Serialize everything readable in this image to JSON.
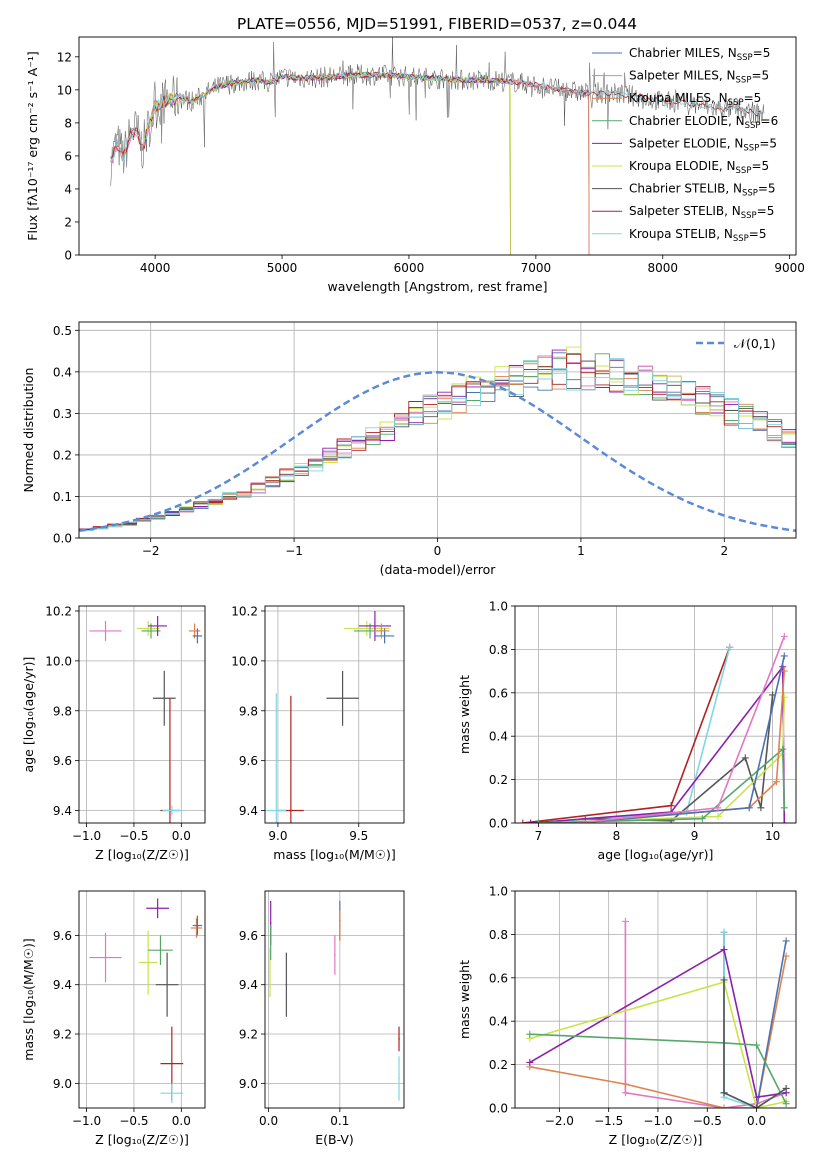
{
  "figure_title": "PLATE=0556, MJD=51991, FIBERID=0537, z=0.044",
  "colors": {
    "Chabrier MILES": "#4c72b0",
    "Salpeter MILES": "#e377c2",
    "Kroupa MILES": "#dd8452",
    "Chabrier ELODIE": "#55a868",
    "Salpeter ELODIE": "#8c1fb0",
    "Kroupa ELODIE": "#cbe34a",
    "Chabrier STELIB": "#555555",
    "Salpeter STELIB": "#b22222",
    "Kroupa STELIB": "#7fd7e0"
  },
  "chart_data": [
    {
      "id": "spectrum",
      "type": "line",
      "title": "PLATE=0556, MJD=51991, FIBERID=0537, z=0.044",
      "xlabel": "wavelength [Angstrom, rest frame]",
      "ylabel": "Flux [fλ10⁻¹⁷ erg cm⁻² s⁻¹ A⁻¹]",
      "xlim": [
        3400,
        9050
      ],
      "ylim": [
        0,
        13.2
      ],
      "xticks": [
        4000,
        5000,
        6000,
        7000,
        8000,
        9000
      ],
      "yticks": [
        0,
        2,
        4,
        6,
        8,
        10,
        12
      ],
      "legend_position": "top-right",
      "grid": false,
      "data_x": [
        3650,
        3700,
        3750,
        3800,
        3850,
        3900,
        3950,
        4000,
        4100,
        4200,
        4300,
        4400,
        4500,
        4600,
        4700,
        4800,
        4900,
        5000,
        5200,
        5400,
        5600,
        5800,
        6000,
        6200,
        6400,
        6600,
        6800,
        7000,
        7200,
        7400,
        7600,
        7800,
        8000,
        8200,
        8400,
        8600,
        8800
      ],
      "data_y": [
        5.6,
        6.8,
        5.9,
        7.2,
        7.6,
        6.4,
        7.8,
        9.0,
        9.4,
        9.5,
        9.3,
        9.8,
        10.2,
        10.4,
        10.5,
        10.6,
        10.4,
        10.8,
        10.7,
        10.8,
        10.9,
        10.9,
        10.8,
        10.7,
        10.6,
        10.6,
        10.5,
        10.3,
        10.0,
        9.8,
        9.8,
        9.6,
        9.3,
        9.2,
        8.9,
        8.8,
        8.5
      ],
      "series": [
        {
          "name": "Chabrier MILES",
          "legend": "Chabrier MILES, N_SSP=5",
          "start": 3650,
          "end": 7420
        },
        {
          "name": "Salpeter MILES",
          "legend": "Salpeter MILES, N_SSP=5",
          "start": 3650,
          "end": 7420
        },
        {
          "name": "Kroupa MILES",
          "legend": "Kroupa MILES, N_SSP=5",
          "start": 3650,
          "end": 7420
        },
        {
          "name": "Chabrier ELODIE",
          "legend": "Chabrier ELODIE, N_SSP=6",
          "start": 4430,
          "end": 6800
        },
        {
          "name": "Salpeter ELODIE",
          "legend": "Salpeter ELODIE, N_SSP=5",
          "start": 4430,
          "end": 6800
        },
        {
          "name": "Kroupa ELODIE",
          "legend": "Kroupa ELODIE, N_SSP=5",
          "start": 3900,
          "end": 6800
        },
        {
          "name": "Chabrier STELIB",
          "legend": "Chabrier STELIB, N_SSP=5",
          "start": 3650,
          "end": 8800
        },
        {
          "name": "Salpeter STELIB",
          "legend": "Salpeter STELIB, N_SSP=5",
          "start": 3650,
          "end": 8800
        },
        {
          "name": "Kroupa STELIB",
          "legend": "Kroupa STELIB, N_SSP=5",
          "start": 3650,
          "end": 8800
        }
      ]
    },
    {
      "id": "residuals",
      "type": "bar",
      "xlabel": "(data-model)/error",
      "ylabel": "Normed distribution",
      "xlim": [
        -2.5,
        2.5
      ],
      "ylim": [
        0,
        0.52
      ],
      "xticks": [
        -2,
        -1,
        0,
        1,
        2
      ],
      "yticks": [
        0.0,
        0.1,
        0.2,
        0.3,
        0.4,
        0.5
      ],
      "grid": true,
      "bin_width": 0.1,
      "bin_start": -2.5,
      "histogram_values": [
        0.02,
        0.025,
        0.03,
        0.035,
        0.045,
        0.05,
        0.06,
        0.07,
        0.08,
        0.09,
        0.1,
        0.11,
        0.12,
        0.135,
        0.15,
        0.165,
        0.18,
        0.2,
        0.215,
        0.23,
        0.245,
        0.26,
        0.28,
        0.3,
        0.31,
        0.32,
        0.335,
        0.35,
        0.36,
        0.375,
        0.38,
        0.39,
        0.395,
        0.4,
        0.4,
        0.4,
        0.395,
        0.39,
        0.385,
        0.375,
        0.365,
        0.355,
        0.345,
        0.33,
        0.32,
        0.305,
        0.29,
        0.275,
        0.26,
        0.245,
        0.23,
        0.215,
        0.2,
        0.185,
        0.17,
        0.155,
        0.14,
        0.125,
        0.11,
        0.1,
        0.09,
        0.08,
        0.07,
        0.06,
        0.05,
        0.045,
        0.04,
        0.035,
        0.03,
        0.025,
        0.02,
        0.02,
        0.015,
        0.015,
        0.01,
        0.01,
        0.01,
        0.01,
        0.01,
        0.01
      ],
      "reference_curve": {
        "name": "𝒩(0,1)",
        "color": "#5b8bd8",
        "style": "dashed"
      },
      "legend_position": "top-right"
    },
    {
      "id": "age_vs_Z",
      "type": "scatter",
      "xlabel": "Z [log₁₀(Z/Z☉)]",
      "ylabel": "age  [log₁₀(age/yr)]",
      "xlim": [
        -1.08,
        0.25
      ],
      "ylim": [
        9.35,
        10.22
      ],
      "xticks": [
        -1.0,
        -0.5,
        0.0
      ],
      "yticks": [
        9.4,
        9.6,
        9.8,
        10.0,
        10.2
      ],
      "grid": true,
      "points": [
        {
          "series": "Salpeter MILES",
          "x": -0.8,
          "y": 10.12,
          "xerr": 0.17,
          "yerr": 0.04
        },
        {
          "series": "Kroupa ELODIE",
          "x": -0.35,
          "y": 10.13,
          "xerr": 0.12,
          "yerr": 0.03
        },
        {
          "series": "Chabrier ELODIE",
          "x": -0.32,
          "y": 10.12,
          "xerr": 0.1,
          "yerr": 0.03
        },
        {
          "series": "Salpeter ELODIE",
          "x": -0.25,
          "y": 10.14,
          "xerr": 0.1,
          "yerr": 0.04
        },
        {
          "series": "Kroupa MILES",
          "x": 0.14,
          "y": 10.12,
          "xerr": 0.06,
          "yerr": 0.03
        },
        {
          "series": "Chabrier MILES",
          "x": 0.17,
          "y": 10.1,
          "xerr": 0.05,
          "yerr": 0.03
        },
        {
          "series": "Chabrier STELIB",
          "x": -0.18,
          "y": 9.85,
          "xerr": 0.12,
          "yerr": 0.11
        },
        {
          "series": "Salpeter STELIB",
          "x": -0.12,
          "y": 9.4,
          "xerr": 0.1,
          "yerr": 0.45
        },
        {
          "series": "Kroupa STELIB",
          "x": -0.1,
          "y": 9.4,
          "xerr": 0.1,
          "yerr": 0.02
        }
      ]
    },
    {
      "id": "age_vs_mass",
      "type": "scatter",
      "xlabel": "mass [log₁₀(M/M☉)]",
      "ylabel": "",
      "xlim": [
        8.92,
        9.78
      ],
      "ylim": [
        9.35,
        10.22
      ],
      "xticks": [
        9.0,
        9.5
      ],
      "yticks": [
        9.4,
        9.6,
        9.8,
        10.0,
        10.2
      ],
      "grid": true,
      "points": [
        {
          "series": "Kroupa ELODIE",
          "x": 9.55,
          "y": 10.13,
          "xerr": 0.14,
          "yerr": 0.03
        },
        {
          "series": "Chabrier ELODIE",
          "x": 9.57,
          "y": 10.12,
          "xerr": 0.1,
          "yerr": 0.03
        },
        {
          "series": "Salpeter ELODIE",
          "x": 9.6,
          "y": 10.14,
          "xerr": 0.1,
          "yerr": 0.06
        },
        {
          "series": "Chabrier MILES",
          "x": 9.66,
          "y": 10.1,
          "xerr": 0.06,
          "yerr": 0.03
        },
        {
          "series": "Kroupa MILES",
          "x": 9.64,
          "y": 10.12,
          "xerr": 0.05,
          "yerr": 0.03
        },
        {
          "series": "Chabrier STELIB",
          "x": 9.4,
          "y": 9.85,
          "xerr": 0.1,
          "yerr": 0.11
        },
        {
          "series": "Salpeter STELIB",
          "x": 9.08,
          "y": 9.4,
          "xerr": 0.08,
          "yerr": 0.46
        },
        {
          "series": "Kroupa STELIB",
          "x": 8.99,
          "y": 9.4,
          "xerr": 0.06,
          "yerr": 0.47
        }
      ]
    },
    {
      "id": "mass_weight_vs_age",
      "type": "line",
      "xlabel": "age  [log₁₀(age/yr)]",
      "ylabel": "mass weight",
      "xlim": [
        6.7,
        10.3
      ],
      "ylim": [
        0.0,
        1.0
      ],
      "xticks": [
        7,
        8,
        9,
        10
      ],
      "yticks": [
        0.0,
        0.2,
        0.4,
        0.6,
        0.8,
        1.0
      ],
      "grid": true,
      "series": [
        {
          "name": "Salpeter STELIB",
          "x": [
            6.8,
            8.7,
            9.45
          ],
          "y": [
            0.0,
            0.08,
            0.81
          ]
        },
        {
          "name": "Kroupa STELIB",
          "x": [
            7.0,
            8.9,
            9.45
          ],
          "y": [
            0.0,
            0.05,
            0.81
          ]
        },
        {
          "name": "Chabrier STELIB",
          "x": [
            7.6,
            8.7,
            9.65,
            9.85,
            10.0
          ],
          "y": [
            0.02,
            0.01,
            0.3,
            0.07,
            0.59
          ]
        },
        {
          "name": "Salpeter ELODIE",
          "x": [
            6.9,
            8.7,
            10.13,
            10.15
          ],
          "y": [
            0.0,
            0.05,
            0.72,
            0.0
          ]
        },
        {
          "name": "Kroupa ELODIE",
          "x": [
            7.0,
            9.3,
            10.13,
            10.15
          ],
          "y": [
            0.0,
            0.03,
            0.32,
            0.58
          ]
        },
        {
          "name": "Chabrier ELODIE",
          "x": [
            7.0,
            9.1,
            10.13,
            10.15
          ],
          "y": [
            0.0,
            0.02,
            0.34,
            0.07
          ]
        },
        {
          "name": "Kroupa MILES",
          "x": [
            7.5,
            9.7,
            10.05,
            10.15
          ],
          "y": [
            0.0,
            0.07,
            0.19,
            0.7
          ]
        },
        {
          "name": "Chabrier MILES",
          "x": [
            7.5,
            9.7,
            10.15
          ],
          "y": [
            0.0,
            0.07,
            0.77
          ]
        },
        {
          "name": "Salpeter MILES",
          "x": [
            7.5,
            9.3,
            10.15
          ],
          "y": [
            0.0,
            0.07,
            0.86
          ]
        }
      ]
    },
    {
      "id": "mass_vs_Z",
      "type": "scatter",
      "xlabel": "Z [log₁₀(Z/Z☉)]",
      "ylabel": "mass [log₁₀(M/M☉)]",
      "xlim": [
        -1.08,
        0.25
      ],
      "ylim": [
        8.9,
        9.78
      ],
      "xticks": [
        -1.0,
        -0.5,
        0.0
      ],
      "yticks": [
        9.0,
        9.2,
        9.4,
        9.6
      ],
      "grid": true,
      "points": [
        {
          "series": "Salpeter MILES",
          "x": -0.8,
          "y": 9.51,
          "xerr": 0.17,
          "yerr": 0.1
        },
        {
          "series": "Salpeter ELODIE",
          "x": -0.25,
          "y": 9.71,
          "xerr": 0.12,
          "yerr": 0.04
        },
        {
          "series": "Kroupa ELODIE",
          "x": -0.35,
          "y": 9.49,
          "xerr": 0.1,
          "yerr": 0.13
        },
        {
          "series": "Chabrier ELODIE",
          "x": -0.22,
          "y": 9.54,
          "xerr": 0.13,
          "yerr": 0.06
        },
        {
          "series": "Chabrier STELIB",
          "x": -0.15,
          "y": 9.4,
          "xerr": 0.12,
          "yerr": 0.13
        },
        {
          "series": "Kroupa MILES",
          "x": 0.16,
          "y": 9.63,
          "xerr": 0.06,
          "yerr": 0.04
        },
        {
          "series": "Chabrier MILES",
          "x": 0.17,
          "y": 9.64,
          "xerr": 0.05,
          "yerr": 0.04
        },
        {
          "series": "Salpeter STELIB",
          "x": -0.1,
          "y": 9.08,
          "xerr": 0.12,
          "yerr": 0.15
        },
        {
          "series": "Kroupa STELIB",
          "x": -0.1,
          "y": 8.96,
          "xerr": 0.12,
          "yerr": 0.04
        }
      ]
    },
    {
      "id": "mass_vs_ebv",
      "type": "scatter",
      "xlabel": "E(B-V)",
      "ylabel": "",
      "xlim": [
        -0.005,
        0.19
      ],
      "ylim": [
        8.9,
        9.78
      ],
      "xticks": [
        0.0,
        0.1
      ],
      "yticks": [
        9.0,
        9.2,
        9.4,
        9.6
      ],
      "grid": true,
      "points": [
        {
          "series": "Salpeter ELODIE",
          "x": 0.003,
          "y": 9.65,
          "xerr": 0.001,
          "yerr": 0.09
        },
        {
          "series": "Kroupa ELODIE",
          "x": 0.002,
          "y": 9.45,
          "xerr": 0.001,
          "yerr": 0.1
        },
        {
          "series": "Chabrier ELODIE",
          "x": 0.003,
          "y": 9.57,
          "xerr": 0.001,
          "yerr": 0.07
        },
        {
          "series": "Chabrier STELIB",
          "x": 0.025,
          "y": 9.4,
          "xerr": 0.001,
          "yerr": 0.13
        },
        {
          "series": "Salpeter MILES",
          "x": 0.093,
          "y": 9.52,
          "xerr": 0.001,
          "yerr": 0.08
        },
        {
          "series": "Chabrier MILES",
          "x": 0.1,
          "y": 9.66,
          "xerr": 0.001,
          "yerr": 0.08
        },
        {
          "series": "Kroupa MILES",
          "x": 0.1,
          "y": 9.64,
          "xerr": 0.001,
          "yerr": 0.06
        },
        {
          "series": "Salpeter STELIB",
          "x": 0.183,
          "y": 9.18,
          "xerr": 0.001,
          "yerr": 0.05
        },
        {
          "series": "Kroupa STELIB",
          "x": 0.183,
          "y": 9.02,
          "xerr": 0.001,
          "yerr": 0.09
        }
      ]
    },
    {
      "id": "mass_weight_vs_Z",
      "type": "line",
      "xlabel": "Z [log₁₀(Z/Z☉)]",
      "ylabel": "mass weight",
      "xlim": [
        -2.45,
        0.4
      ],
      "ylim": [
        0.0,
        1.0
      ],
      "xticks": [
        -2.0,
        -1.5,
        -1.0,
        -0.5,
        0.0
      ],
      "yticks": [
        0.0,
        0.2,
        0.4,
        0.6,
        0.8,
        1.0
      ],
      "grid": true,
      "series": [
        {
          "name": "Salpeter MILES",
          "x": [
            -1.33,
            -1.33,
            -0.33,
            0.0,
            0.3
          ],
          "y": [
            0.86,
            0.07,
            0.0,
            0.02,
            0.07
          ]
        },
        {
          "name": "Kroupa MILES",
          "x": [
            -2.3,
            -1.33,
            -0.33,
            0.0,
            0.3
          ],
          "y": [
            0.19,
            0.11,
            0.0,
            0.0,
            0.7
          ]
        },
        {
          "name": "Chabrier MILES",
          "x": [
            -0.33,
            -0.33,
            0.0,
            0.3
          ],
          "y": [
            0.81,
            0.07,
            0.0,
            0.77
          ]
        },
        {
          "name": "Kroupa STELIB",
          "x": [
            -0.33,
            -0.33,
            0.0,
            0.3
          ],
          "y": [
            0.81,
            0.05,
            0.0,
            0.09
          ]
        },
        {
          "name": "Salpeter ELODIE",
          "x": [
            -2.3,
            -0.33,
            0.0,
            0.3
          ],
          "y": [
            0.21,
            0.73,
            0.05,
            0.07
          ]
        },
        {
          "name": "Kroupa ELODIE",
          "x": [
            -2.3,
            -0.33,
            0.0,
            0.3
          ],
          "y": [
            0.32,
            0.58,
            0.0,
            0.03
          ]
        },
        {
          "name": "Chabrier ELODIE",
          "x": [
            -2.3,
            -0.33,
            0.0,
            0.3
          ],
          "y": [
            0.34,
            0.3,
            0.29,
            0.02
          ]
        },
        {
          "name": "Chabrier STELIB",
          "x": [
            -0.33,
            -0.33,
            0.0,
            0.3
          ],
          "y": [
            0.59,
            0.07,
            0.0,
            0.09
          ]
        }
      ]
    }
  ]
}
